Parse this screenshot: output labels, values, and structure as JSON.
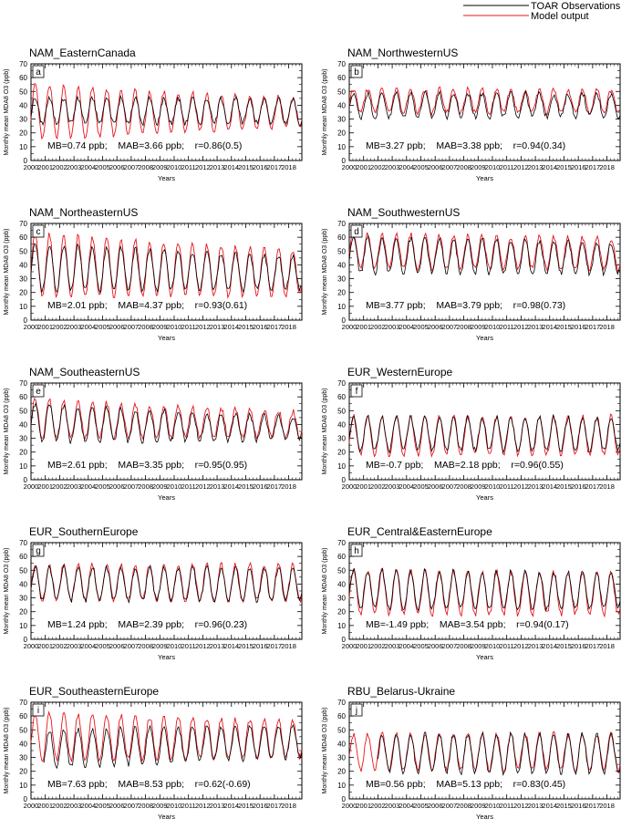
{
  "legend": {
    "placement": "top-right",
    "entries": [
      {
        "label": "TOAR Observations",
        "color": "#000000"
      },
      {
        "label": "Model output",
        "color": "#e8141b"
      }
    ]
  },
  "colors": {
    "observations": "#000000",
    "model": "#e8141b"
  },
  "axes_common": {
    "xlabel": "Years",
    "ylabel": "Monthly mean MDA8 O3 (ppb)",
    "xlim": [
      2000,
      2018.92
    ],
    "ylim": [
      0,
      70
    ],
    "yticks": [
      "0",
      "10",
      "20",
      "30",
      "40",
      "50",
      "60",
      "70"
    ],
    "xticks": [
      "2000",
      "2001",
      "2002",
      "2003",
      "2004",
      "2005",
      "2006",
      "2007",
      "2008",
      "2009",
      "2010",
      "2011",
      "2012",
      "2013",
      "2014",
      "2015",
      "2016",
      "2017",
      "2018"
    ]
  },
  "chart_data": [
    {
      "type": "line",
      "letter": "a",
      "title": "NAM_EasternCanada",
      "stats": "MB=0.74 ppb;    MAB=3.66 ppb;    r=0.86(0.5)",
      "seasonal": {
        "obs": {
          "base": 36,
          "amp": 9,
          "trend": 0,
          "pkstart": 45,
          "pkend": 45
        },
        "model": {
          "base": 35,
          "amp": 13,
          "trend": 0,
          "pkstart": 55,
          "pkend": 45
        },
        "obsStart": 2000
      }
    },
    {
      "type": "line",
      "letter": "b",
      "title": "NAM_NorthwesternUS",
      "stats": "MB=3.27 ppb;    MAB=3.38 ppb;    r=0.94(0.34)",
      "seasonal": {
        "obs": {
          "base": 40,
          "amp": 7,
          "trend": 0,
          "pkstart": 49,
          "pkend": 48
        },
        "model": {
          "base": 43,
          "amp": 7,
          "trend": 0,
          "pkstart": 52,
          "pkend": 51
        },
        "obsStart": 2000
      }
    },
    {
      "type": "line",
      "letter": "c",
      "title": "NAM_NortheasternUS",
      "stats": "MB=2.01 ppb;    MAB=4.37 ppb;    r=0.93(0.61)",
      "seasonal": {
        "obs": {
          "base": 38,
          "amp": 14,
          "trend": -4,
          "pkstart": 55,
          "pkend": 46
        },
        "model": {
          "base": 40,
          "amp": 19,
          "trend": -6,
          "pkstart": 63,
          "pkend": 50
        },
        "obsStart": 2000
      }
    },
    {
      "type": "line",
      "letter": "d",
      "title": "NAM_SouthwesternUS",
      "stats": "MB=3.77 ppb;    MAB=3.79 ppb;    r=0.98(0.73)",
      "seasonal": {
        "obs": {
          "base": 47,
          "amp": 12,
          "trend": -2,
          "pkstart": 60,
          "pkend": 56
        },
        "model": {
          "base": 50,
          "amp": 12,
          "trend": -2,
          "pkstart": 63,
          "pkend": 59
        },
        "obsStart": 2000
      }
    },
    {
      "type": "line",
      "letter": "e",
      "title": "NAM_SoutheasternUS",
      "stats": "MB=2.61 ppb;    MAB=3.35 ppb;    r=0.95(0.95)",
      "seasonal": {
        "obs": {
          "base": 41,
          "amp": 12,
          "trend": -4,
          "pkstart": 55,
          "pkend": 45
        },
        "model": {
          "base": 44,
          "amp": 13,
          "trend": -4,
          "pkstart": 58,
          "pkend": 49
        },
        "obsStart": 2000
      }
    },
    {
      "type": "line",
      "letter": "f",
      "title": "EUR_WesternEurope",
      "stats": "MB=-0.7 ppb;    MAB=2.18 ppb;    r=0.96(0.55)",
      "seasonal": {
        "obs": {
          "base": 33,
          "amp": 11,
          "trend": 0,
          "pkstart": 45,
          "pkend": 45
        },
        "model": {
          "base": 32,
          "amp": 12,
          "trend": 0,
          "pkstart": 46,
          "pkend": 46
        },
        "obsStart": 2000
      }
    },
    {
      "type": "line",
      "letter": "g",
      "title": "EUR_SouthernEurope",
      "stats": "MB=1.24 ppb;    MAB=2.39 ppb;    r=0.96(0.23)",
      "seasonal": {
        "obs": {
          "base": 40,
          "amp": 12,
          "trend": 0,
          "pkstart": 52,
          "pkend": 52
        },
        "model": {
          "base": 41,
          "amp": 12,
          "trend": 0,
          "pkstart": 54,
          "pkend": 54
        },
        "obsStart": 2000
      }
    },
    {
      "type": "line",
      "letter": "h",
      "title": "EUR_Central&EasternEurope",
      "stats": "MB=-1.49 ppb;    MAB=3.54 ppb;    r=0.94(0.17)",
      "seasonal": {
        "obs": {
          "base": 36,
          "amp": 13,
          "trend": -1,
          "pkstart": 50,
          "pkend": 48
        },
        "model": {
          "base": 34,
          "amp": 15,
          "trend": -1,
          "pkstart": 50,
          "pkend": 48
        },
        "obsStart": 2000
      }
    },
    {
      "type": "line",
      "letter": "i",
      "title": "EUR_SoutheasternEurope",
      "stats": "MB=7.63 ppb;    MAB=8.53 ppb;    r=0.62(-0.69)",
      "seasonal": {
        "obs": {
          "base": 36,
          "amp": 14,
          "trend": 6,
          "pkstart": 50,
          "pkend": 54
        },
        "model": {
          "base": 45,
          "amp": 13,
          "trend": -2,
          "pkstart": 62,
          "pkend": 56
        },
        "obsStart": 2000.9
      }
    },
    {
      "type": "line",
      "letter": "j",
      "title": "RBU_Belarus-Ukraine",
      "stats": "MB=0.56 ppb;    MAB=5.13 ppb;    r=0.83(0.45)",
      "seasonal": {
        "obs": {
          "base": 33,
          "amp": 14,
          "trend": 0,
          "pkstart": 47,
          "pkend": 47
        },
        "model": {
          "base": 34,
          "amp": 13,
          "trend": 0,
          "pkstart": 47,
          "pkend": 47
        },
        "obsStart": 2002
      }
    }
  ]
}
